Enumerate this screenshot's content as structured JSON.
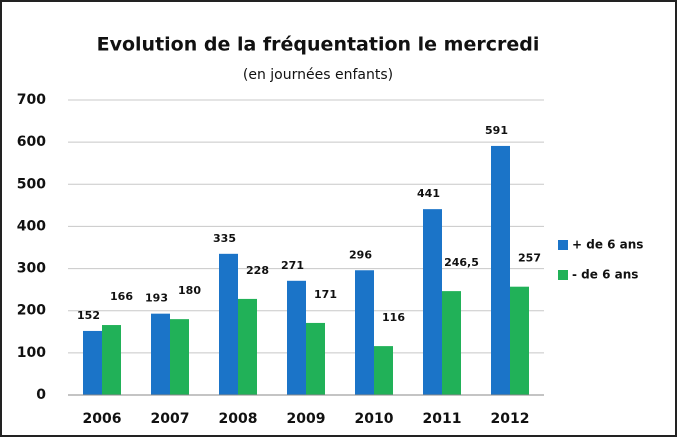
{
  "chart_data": {
    "type": "bar",
    "title": "Evolution de la fréquentation le mercredi",
    "subtitle": "(en journées enfants)",
    "categories": [
      "2006",
      "2007",
      "2008",
      "2009",
      "2010",
      "2011",
      "2012"
    ],
    "series": [
      {
        "name": "+ de 6 ans",
        "color": "#1b74c8",
        "values": [
          152,
          193,
          335,
          271,
          296,
          441,
          591
        ]
      },
      {
        "name": "- de 6 ans",
        "color": "#21b158",
        "values": [
          166,
          180,
          228,
          171,
          116,
          246.5,
          257
        ],
        "value_labels": [
          "166",
          "180",
          "228",
          "171",
          "116",
          "246,5",
          "257"
        ]
      }
    ],
    "ylim": [
      0,
      700
    ],
    "yticks": [
      0,
      100,
      200,
      300,
      400,
      500,
      600,
      700
    ],
    "grid": true,
    "legend": "right"
  }
}
